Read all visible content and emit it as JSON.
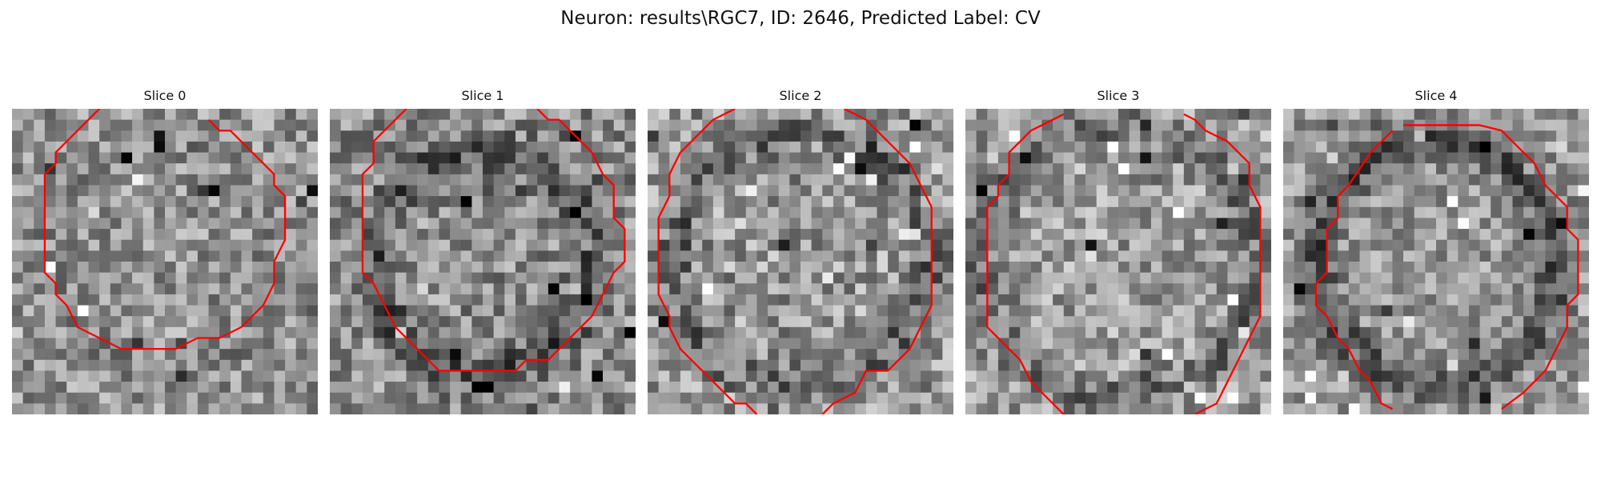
{
  "figure": {
    "title": "Neuron: results\\RGC7, ID: 2646, Predicted Label: CV"
  },
  "panels": [
    {
      "label": "Slice 0",
      "contour_color": "#ff0000"
    },
    {
      "label": "Slice 1",
      "contour_color": "#ff0000"
    },
    {
      "label": "Slice 2",
      "contour_color": "#ff0000"
    },
    {
      "label": "Slice 3",
      "contour_color": "#ff0000"
    },
    {
      "label": "Slice 4",
      "contour_color": "#ff0000"
    }
  ]
}
